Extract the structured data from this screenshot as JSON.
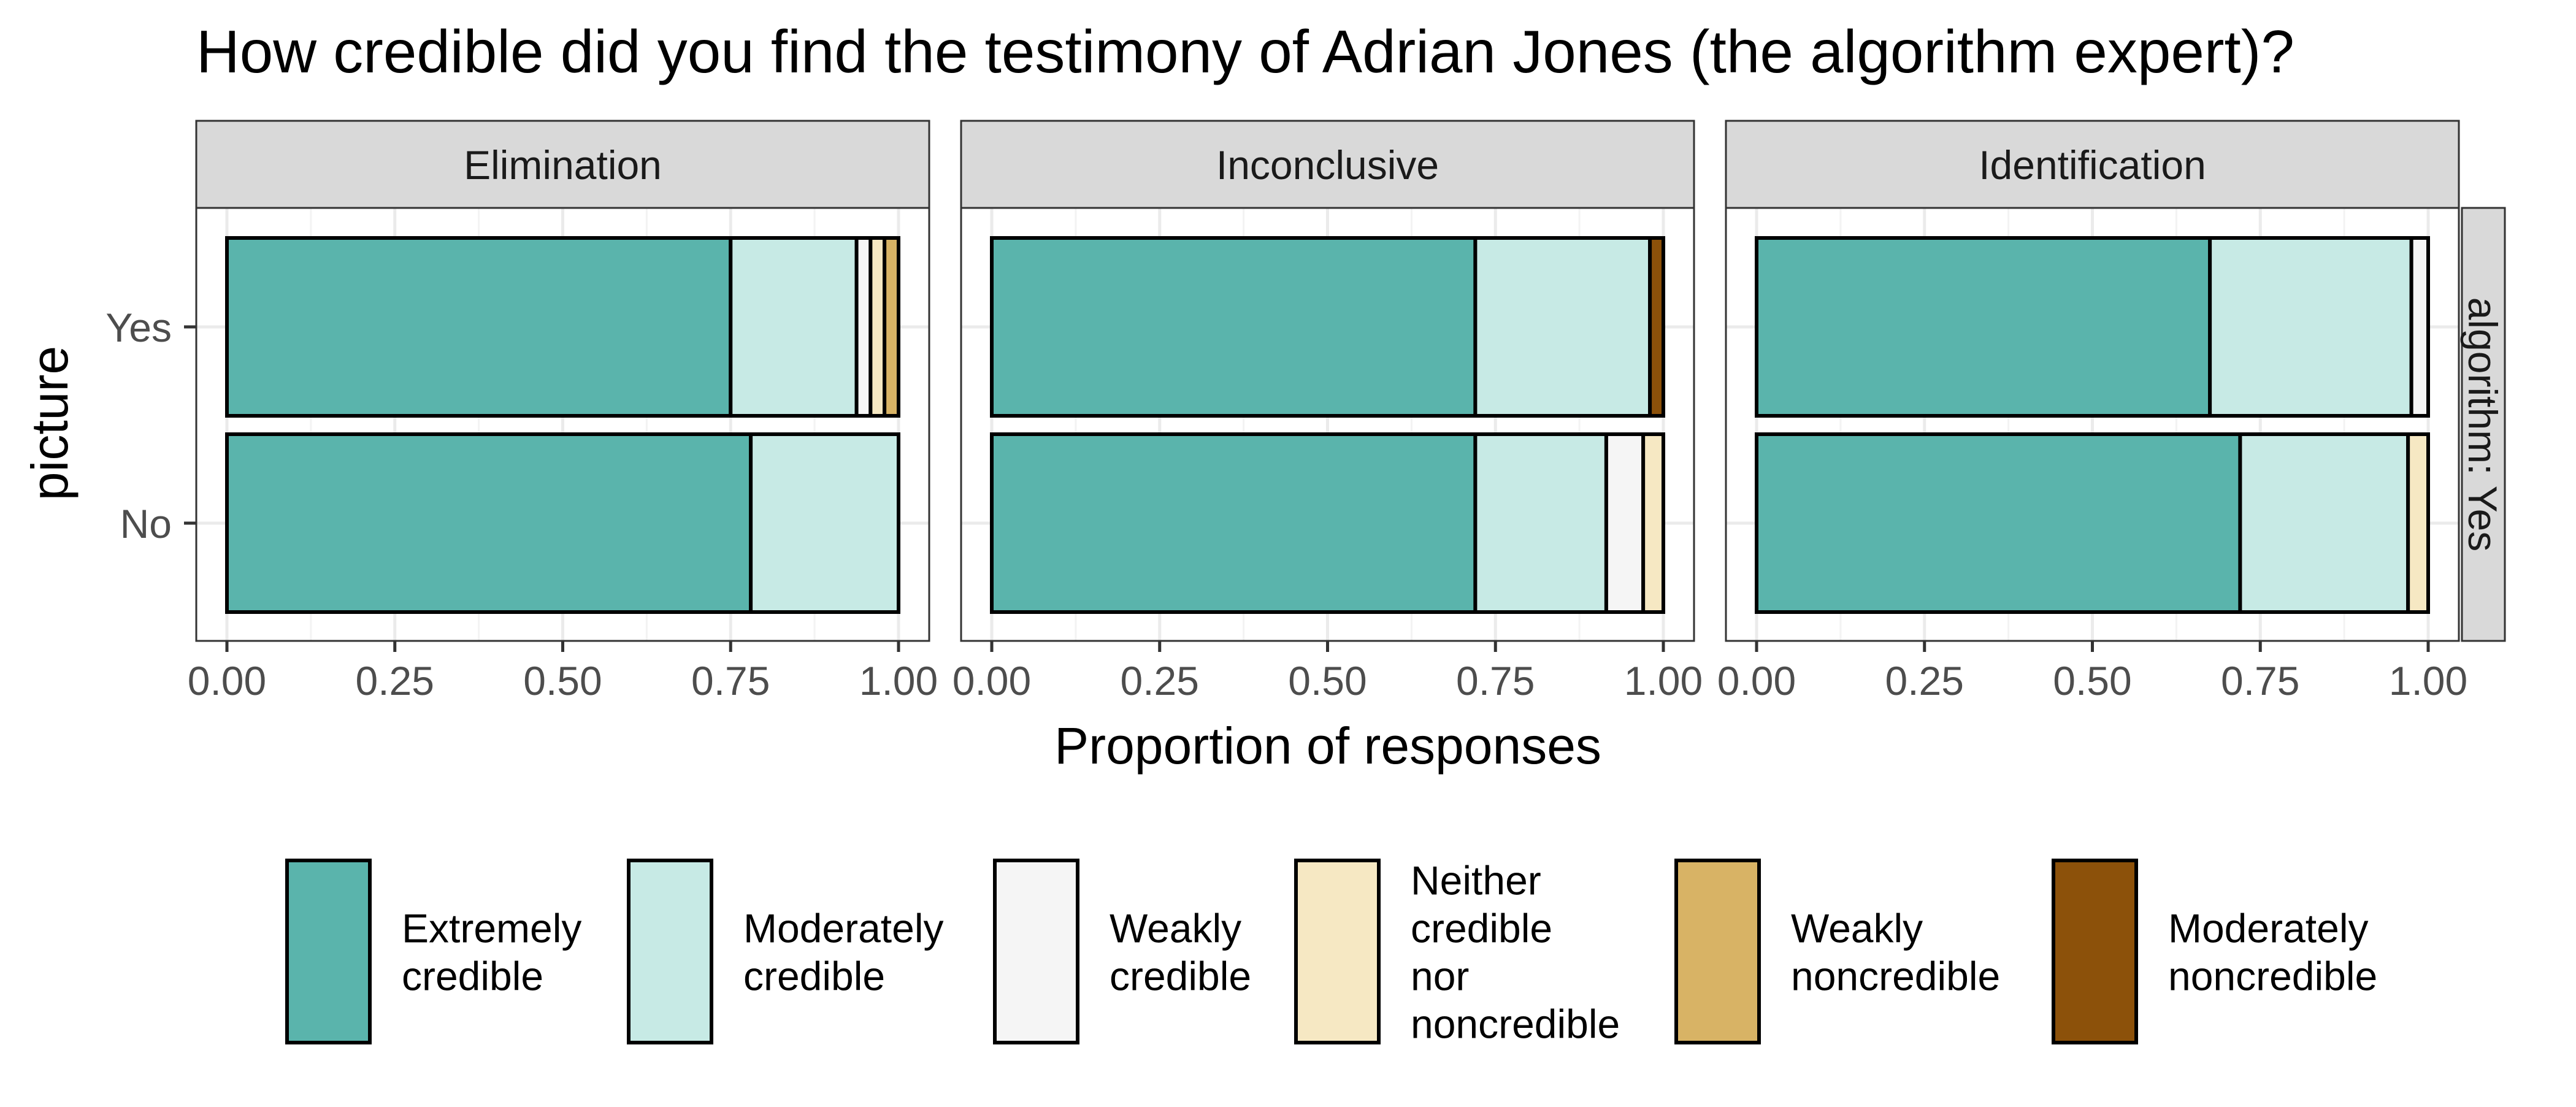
{
  "chart_data": {
    "type": "bar",
    "orientation": "horizontal",
    "stacked": true,
    "title": "How credible did you find the testimony of Adrian Jones (the algorithm expert)?",
    "xlabel": "Proportion of responses",
    "ylabel": "picture",
    "xlim": [
      0,
      1
    ],
    "x_ticks": [
      "0.00",
      "0.25",
      "0.50",
      "0.75",
      "1.00"
    ],
    "grid": true,
    "legend_position": "bottom",
    "row_strip": "algorithm: Yes",
    "categories": [
      "Yes",
      "No"
    ],
    "series": [
      {
        "name": "Extremely credible",
        "color": "#5ab4ac"
      },
      {
        "name": "Moderately credible",
        "color": "#c7eae5"
      },
      {
        "name": "Weakly credible",
        "color": "#f5f5f5"
      },
      {
        "name": "Neither credible nor noncredible",
        "color": "#f6e8c3"
      },
      {
        "name": "Weakly noncredible",
        "color": "#d8b365"
      },
      {
        "name": "Moderately noncredible",
        "color": "#8c510a"
      }
    ],
    "legend": [
      {
        "lines": [
          "Extremely",
          "credible"
        ],
        "color": "#5ab4ac"
      },
      {
        "lines": [
          "Moderately",
          "credible"
        ],
        "color": "#c7eae5"
      },
      {
        "lines": [
          "Weakly",
          "credible"
        ],
        "color": "#f5f5f5"
      },
      {
        "lines": [
          "Neither",
          "credible",
          "nor",
          "noncredible"
        ],
        "color": "#f6e8c3"
      },
      {
        "lines": [
          "Weakly",
          "noncredible"
        ],
        "color": "#d8b365"
      },
      {
        "lines": [
          "Moderately",
          "noncredible"
        ],
        "color": "#8c510a"
      }
    ],
    "panels": [
      {
        "name": "Elimination",
        "values": {
          "Yes": [
            0.75,
            0.1875,
            0.0208,
            0.0208,
            0.0209,
            0
          ],
          "No": [
            0.78,
            0.22,
            0,
            0,
            0,
            0
          ]
        }
      },
      {
        "name": "Inconclusive",
        "values": {
          "Yes": [
            0.72,
            0.26,
            0,
            0,
            0,
            0.02
          ],
          "No": [
            0.72,
            0.195,
            0.055,
            0.03,
            0,
            0
          ]
        }
      },
      {
        "name": "Identification",
        "values": {
          "Yes": [
            0.675,
            0.3,
            0.025,
            0,
            0,
            0
          ],
          "No": [
            0.72,
            0.25,
            0,
            0.03,
            0,
            0
          ]
        }
      }
    ]
  }
}
